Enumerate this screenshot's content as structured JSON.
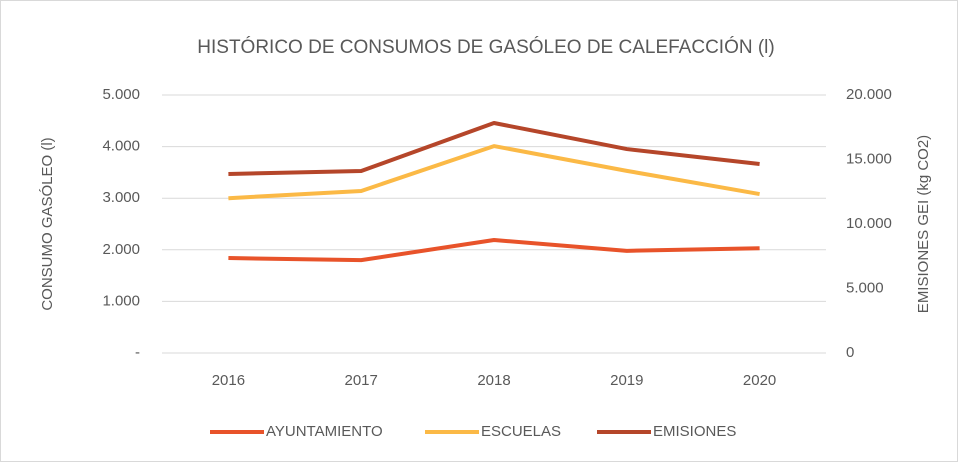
{
  "chart_data": {
    "type": "line",
    "title": "HISTÓRICO DE CONSUMOS DE GASÓLEO DE CALEFACCIÓN (l)",
    "y_label": "CONSUMO GASÓLEO (l)",
    "y2_label": "EMISIONES GEI (kg CO2)",
    "categories": [
      "2016",
      "2017",
      "2018",
      "2019",
      "2020"
    ],
    "series": [
      {
        "name": "AYUNTAMIENTO",
        "color": "#e8532a",
        "values": [
          1840,
          1800,
          2190,
          1980,
          2030
        ]
      },
      {
        "name": "ESCUELAS",
        "color": "#fbb946",
        "values": [
          3000,
          3140,
          4010,
          3530,
          3080
        ]
      },
      {
        "name": "EMISIONES",
        "color": "#b5462a",
        "axis": "y2",
        "values": [
          13880,
          14110,
          17830,
          15810,
          14650
        ]
      }
    ],
    "ylim": [
      0,
      5000
    ],
    "yticks": [
      {
        "value": 0,
        "label": "-"
      },
      {
        "value": 1000,
        "label": "1.000"
      },
      {
        "value": 2000,
        "label": "2.000"
      },
      {
        "value": 3000,
        "label": "3.000"
      },
      {
        "value": 4000,
        "label": "4.000"
      },
      {
        "value": 5000,
        "label": "5.000"
      }
    ],
    "y2lim": [
      0,
      20000
    ],
    "y2ticks": [
      0,
      {
        "value": 5000,
        "label": "5.000"
      },
      {
        "value": 10000,
        "label": "10.000"
      },
      {
        "value": 15000,
        "label": "15.000"
      },
      {
        "value": 20000,
        "label": "20.000"
      }
    ],
    "grid": true,
    "legend": "bottom"
  }
}
